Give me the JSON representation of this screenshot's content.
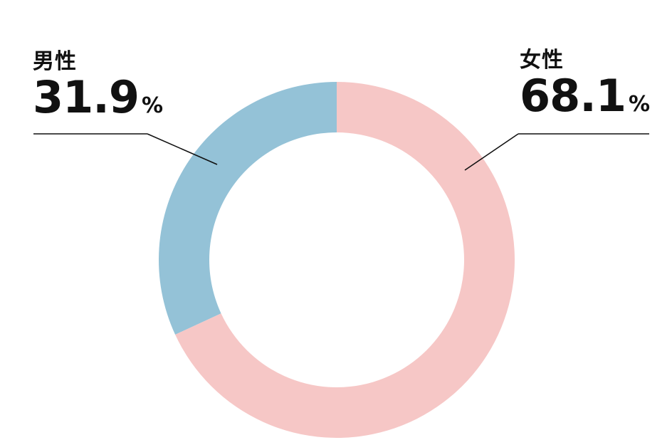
{
  "chart_data": {
    "type": "pie",
    "variant": "donut",
    "categories": [
      "男性",
      "女性"
    ],
    "values": [
      31.9,
      68.1
    ],
    "unit": "%",
    "colors": [
      "#94c2d7",
      "#f6c7c6"
    ],
    "start": "top",
    "direction": "counterclockwise",
    "title": "",
    "labels": [
      {
        "name": "男性",
        "value": "31.9",
        "unit": "%"
      },
      {
        "name": "女性",
        "value": "68.1",
        "unit": "%"
      }
    ]
  }
}
